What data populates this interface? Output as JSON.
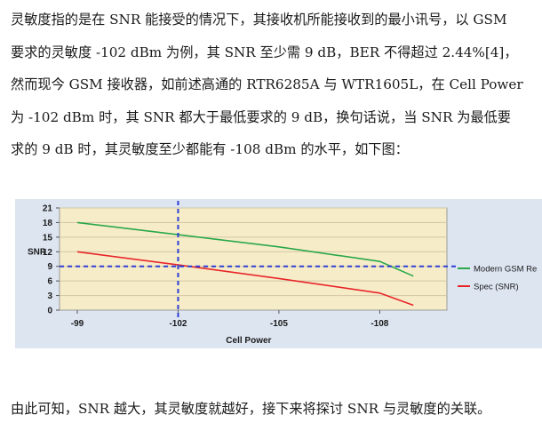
{
  "paragraph_top": [
    "灵敏度指的是在 SNR 能接受的情况下，其接收机所能接收到的最小讯号，以 GSM",
    "要求的灵敏度  -102 dBm 为例，其 SNR 至少需 9 dB，BER 不得超过 2.44%[4]，",
    "然而现今 GSM 接收器，如前述高通的 RTR6285A 与 WTR1605L，在 Cell Power",
    "为  -102 dBm 时，其 SNR 都大于最低要求的 9 dB，换句话说，当 SNR 为最低要",
    "求的 9 dB 时，其灵敏度至少都能有  -108 dBm 的水平，如下图："
  ],
  "paragraph_bottom": "由此可知，SNR 越大，其灵敏度就越好，接下来将探讨 SNR 与灵敏度的关联。",
  "colors": {
    "plot_background": "#f7ecc8",
    "frame_background": "#dde5f1",
    "gridline": "#d2c6a4",
    "modern_series": "#2aa84a",
    "spec_series": "#e8262a",
    "reference_line": "#2b3fd6"
  },
  "chart_data": {
    "type": "line",
    "xlabel": "Cell Power",
    "ylabel": "SNR",
    "x_ticks": [
      "-99",
      "-102",
      "-105",
      "-108"
    ],
    "x_tick_values": [
      -99,
      -102,
      -105,
      -108
    ],
    "xlim": [
      -99,
      -110
    ],
    "ylim": [
      0,
      21
    ],
    "y_ticks": [
      0,
      3,
      6,
      9,
      12,
      15,
      18,
      21
    ],
    "grid": "horizontal",
    "legend_position": "right",
    "series": [
      {
        "name": "Modern GSM Re",
        "color": "#2aa84a",
        "x": [
          -99,
          -102,
          -105,
          -108,
          -109
        ],
        "y": [
          18,
          15.5,
          13,
          10,
          7
        ]
      },
      {
        "name": "Spec (SNR)",
        "color": "#e8262a",
        "x": [
          -99,
          -102,
          -105,
          -108,
          -109
        ],
        "y": [
          12,
          9.3,
          6.5,
          3.5,
          1
        ]
      }
    ],
    "reference_lines": [
      {
        "axis": "x",
        "value": -102,
        "style": "dashed"
      },
      {
        "axis": "y",
        "value": 9,
        "style": "dashed"
      }
    ]
  }
}
